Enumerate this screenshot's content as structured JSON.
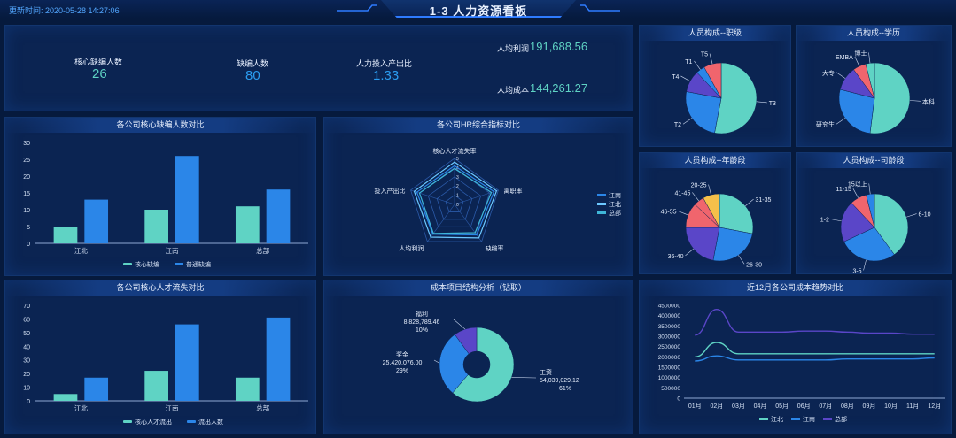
{
  "header": {
    "title": "1-3 人力资源看板",
    "update_time": "更新时间: 2020-05-28 14:27:06"
  },
  "kpis": {
    "core_vacancy": {
      "label": "核心缺编人数",
      "value": "26"
    },
    "vacancy": {
      "label": "缺编人数",
      "value": "80"
    },
    "hr_roi": {
      "label": "人力投入产出比",
      "value": "1.33"
    },
    "profit_per_capita": {
      "label": "人均利润",
      "value": "191,688.56"
    },
    "cost_per_capita": {
      "label": "人均成本",
      "value": "144,261.27"
    }
  },
  "colors": {
    "teal": "#5fd3c4",
    "blue": "#2b86e8",
    "purple": "#5a46c8",
    "red": "#f0656d",
    "yellow": "#f5c04a",
    "lightblue": "#6cc8ff"
  },
  "chart_data": [
    {
      "id": "core_vacancy_bar",
      "type": "bar",
      "title": "各公司核心缺编人数对比",
      "categories": [
        "江北",
        "江南",
        "总部"
      ],
      "series": [
        {
          "name": "核心缺编",
          "values": [
            5,
            10,
            11
          ]
        },
        {
          "name": "普通缺编",
          "values": [
            13,
            26,
            16
          ]
        }
      ],
      "ylim": [
        0,
        30
      ],
      "yticks": [
        "0",
        "5",
        "10",
        "15",
        "20",
        "25",
        "30"
      ],
      "legend": "bottom"
    },
    {
      "id": "radar",
      "type": "radar",
      "title": "各公司HR综合指标对比",
      "indicators": [
        "核心人才流失率",
        "离职率",
        "缺编率",
        "人均利润",
        "投入产出比"
      ],
      "scale_labels": [
        "0",
        "1",
        "2",
        "3",
        "4",
        "5"
      ],
      "series": [
        {
          "name": "江南",
          "values": [
            4.2,
            4.5,
            4.1,
            4.0,
            4.3
          ]
        },
        {
          "name": "江北",
          "values": [
            4.6,
            4.8,
            4.5,
            4.4,
            4.6
          ]
        },
        {
          "name": "总部",
          "values": [
            3.9,
            4.2,
            3.8,
            3.9,
            4.0
          ]
        }
      ],
      "legend": "right"
    },
    {
      "id": "pie_rank",
      "type": "pie",
      "title": "人员构成--职级",
      "labels": [
        "T3",
        "T2",
        "T4",
        "T1",
        "T5"
      ],
      "values": [
        53,
        25,
        10,
        4,
        8
      ]
    },
    {
      "id": "pie_edu",
      "type": "pie",
      "title": "人员构成--学历",
      "labels": [
        "本科",
        "研究生",
        "大专",
        "EMBA",
        "博士"
      ],
      "values": [
        52,
        27,
        11,
        6,
        4
      ]
    },
    {
      "id": "pie_age",
      "type": "pie",
      "title": "人员构成--年龄段",
      "labels": [
        "31-35",
        "26-30",
        "36-40",
        "46-55",
        "41-45",
        "20-25"
      ],
      "values": [
        28,
        25,
        22,
        12,
        5,
        8
      ]
    },
    {
      "id": "pie_tenure",
      "type": "pie",
      "title": "人员构成--司龄段",
      "labels": [
        "6-10",
        "3-5",
        "1-2",
        "11-15",
        "15以上"
      ],
      "values": [
        40,
        28,
        20,
        8,
        4
      ]
    },
    {
      "id": "core_loss_bar",
      "type": "bar",
      "title": "各公司核心人才流失对比",
      "categories": [
        "江北",
        "江南",
        "总部"
      ],
      "series": [
        {
          "name": "核心人才流出",
          "values": [
            5,
            22,
            17
          ]
        },
        {
          "name": "流出人数",
          "values": [
            17,
            56,
            61
          ]
        }
      ],
      "ylim": [
        0,
        70
      ],
      "yticks": [
        "0",
        "10",
        "20",
        "30",
        "40",
        "50",
        "60",
        "70"
      ],
      "legend": "bottom"
    },
    {
      "id": "cost_donut",
      "type": "pie",
      "title": "成本项目结构分析（钻取）",
      "labels": [
        "工资",
        "奖金",
        "福利"
      ],
      "values": [
        54039029.12,
        25420076.0,
        8828789.46
      ],
      "value_labels": [
        "54,039,029.12",
        "25,420,076.00",
        "8,828,789.46"
      ],
      "percent_labels": [
        "61%",
        "29%",
        "10%"
      ]
    },
    {
      "id": "cost_trend",
      "type": "line",
      "title": "近12月各公司成本趋势对比",
      "x": [
        "01月",
        "02月",
        "03月",
        "04月",
        "05月",
        "06月",
        "07月",
        "08月",
        "09月",
        "10月",
        "11月",
        "12月"
      ],
      "series": [
        {
          "name": "江北",
          "values": [
            2000000,
            2700000,
            2150000,
            2150000,
            2150000,
            2150000,
            2150000,
            2150000,
            2150000,
            2150000,
            2150000,
            2150000
          ]
        },
        {
          "name": "江南",
          "values": [
            1800000,
            2050000,
            1850000,
            1850000,
            1850000,
            1850000,
            1850000,
            1900000,
            1900000,
            1900000,
            1900000,
            1950000
          ]
        },
        {
          "name": "总部",
          "values": [
            3050000,
            4300000,
            3200000,
            3200000,
            3200000,
            3250000,
            3250000,
            3200000,
            3150000,
            3150000,
            3100000,
            3100000
          ]
        }
      ],
      "ylim": [
        0,
        4500000
      ],
      "yticks": [
        "0",
        "500000",
        "1000000",
        "1500000",
        "2000000",
        "2500000",
        "3000000",
        "3500000",
        "4000000",
        "4500000"
      ],
      "legend": "bottom"
    }
  ]
}
